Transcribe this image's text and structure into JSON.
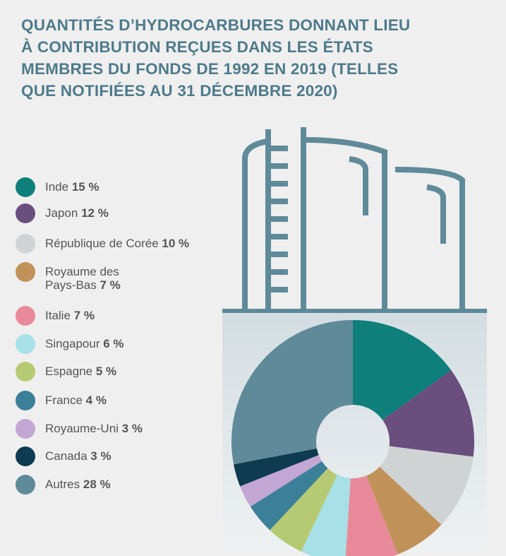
{
  "chart_data": {
    "type": "pie",
    "title": "QUANTITÉS D’HYDROCARBURES DONNANT LIEU\nÀ CONTRIBUTION REÇUES DANS LES ÉTATS\nMEMBRES DU FONDS DE 1992 EN 2019 (TELLES\nQUE NOTIFIÉES AU 31 DÉCEMBRE 2020)",
    "categories": [
      "Inde",
      "Japon",
      "République de Corée",
      "Royaume des\nPays-Bas",
      "Italie",
      "Singapour",
      "Espagne",
      "France",
      "Royaume-Uni",
      "Canada",
      "Autres"
    ],
    "values": [
      15,
      12,
      10,
      7,
      7,
      6,
      5,
      4,
      3,
      3,
      28
    ],
    "value_labels": [
      "15 %",
      "12 %",
      "10 %",
      "7 %",
      "7 %",
      "6 %",
      "5 %",
      "4 %",
      "3 %",
      "3 %",
      "28 %"
    ],
    "colors": [
      "#0e7f7a",
      "#6a4e7e",
      "#cfd3d4",
      "#c0925a",
      "#e88a9a",
      "#a7e0e6",
      "#b5ca72",
      "#3b7f99",
      "#c3a6d4",
      "#0f3b50",
      "#5f8a99"
    ],
    "donut": true
  }
}
